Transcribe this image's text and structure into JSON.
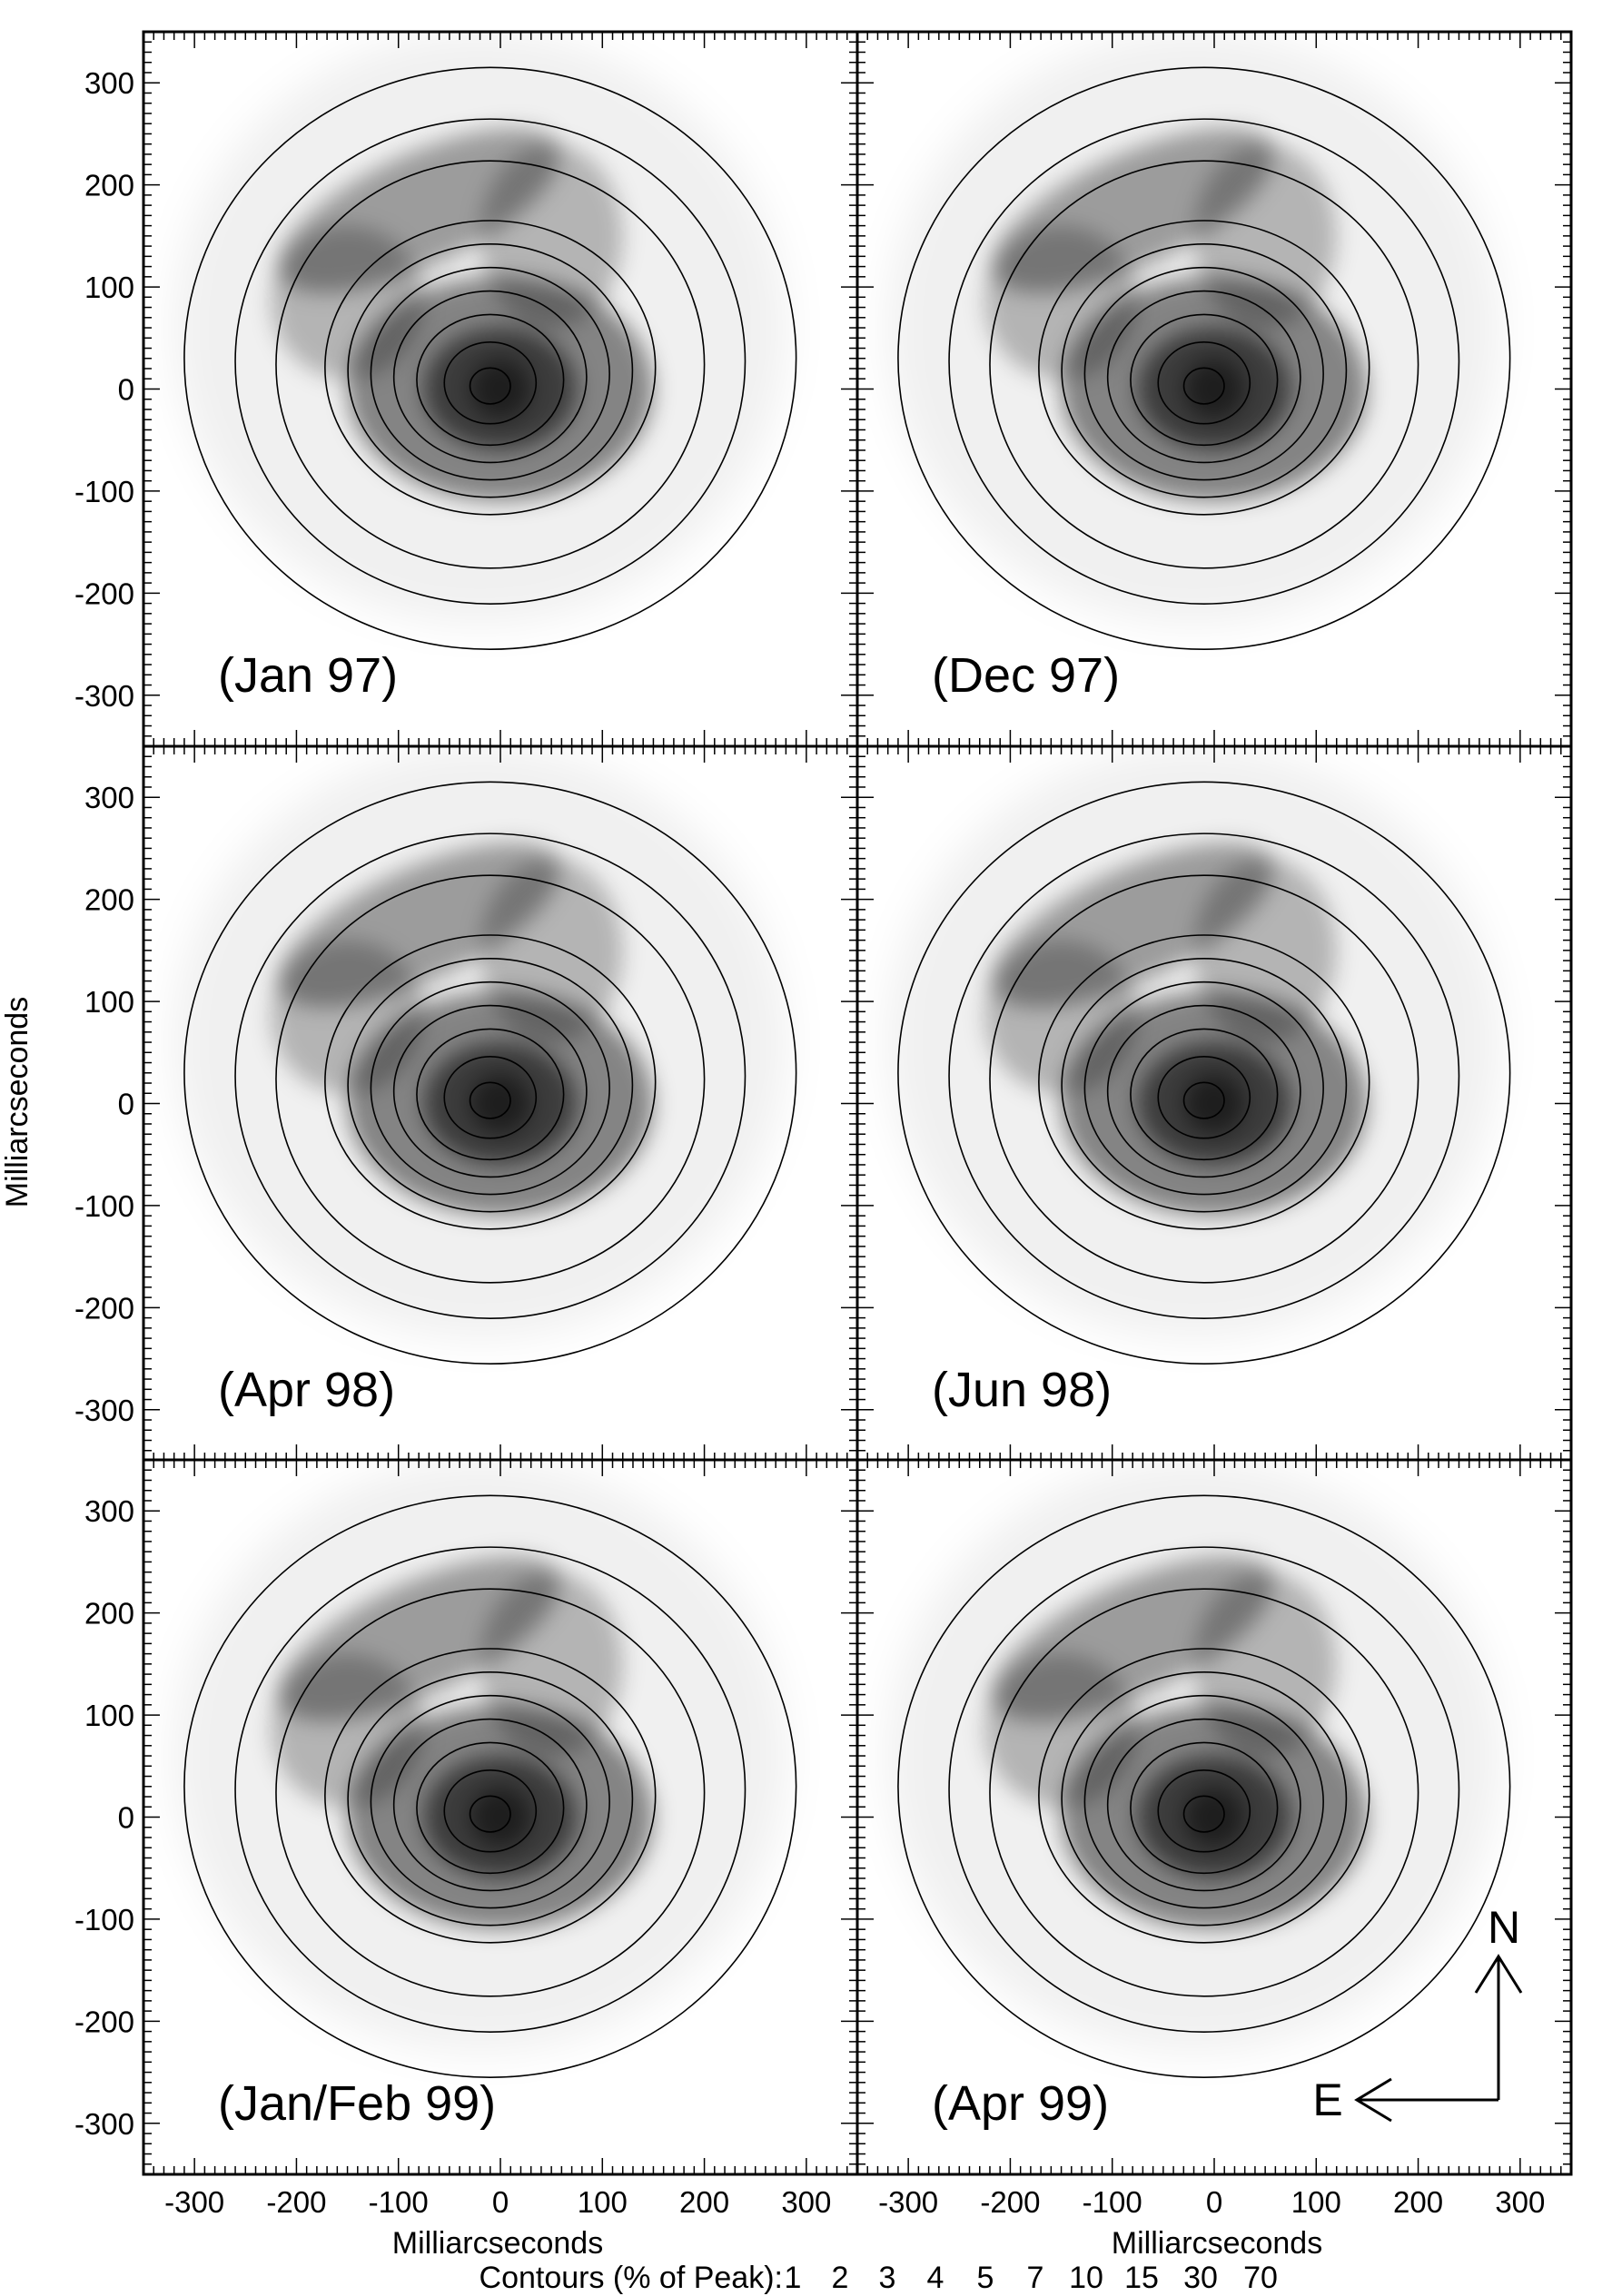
{
  "figure": {
    "ylabel": "Milliarcseconds",
    "xlabel_left": "Milliarcseconds",
    "xlabel_right": "Milliarcseconds",
    "contour_caption": "Contours (% of Peak):",
    "contour_levels": [
      "1",
      "2",
      "3",
      "4",
      "5",
      "7",
      "10",
      "15",
      "30",
      "70"
    ],
    "compass": {
      "north": "N",
      "east": "E"
    }
  },
  "chart_data": {
    "type": "contour",
    "xlim": [
      -350,
      350
    ],
    "ylim": [
      -350,
      350
    ],
    "xticks": [
      -300,
      -200,
      -100,
      0,
      100,
      200,
      300
    ],
    "yticks": [
      -300,
      -200,
      -100,
      0,
      100,
      200,
      300
    ],
    "tick_labels": [
      "-300",
      "-200",
      "-100",
      "0",
      "100",
      "200",
      "300"
    ],
    "contour_levels_pct_of_peak": [
      1,
      2,
      3,
      4,
      5,
      7,
      10,
      15,
      30,
      70
    ],
    "colormap": "inverted grayscale",
    "panels": [
      {
        "label": "(Jan 97)",
        "peak": [
          0,
          0
        ]
      },
      {
        "label": "(Dec 97)",
        "peak": [
          0,
          0
        ]
      },
      {
        "label": "(Apr 98)",
        "peak": [
          0,
          0
        ]
      },
      {
        "label": "(Jun 98)",
        "peak": [
          0,
          0
        ]
      },
      {
        "label": "(Jan/Feb 99)",
        "peak": [
          0,
          0
        ]
      },
      {
        "label": "(Apr 99)",
        "peak": [
          0,
          0
        ]
      }
    ]
  }
}
